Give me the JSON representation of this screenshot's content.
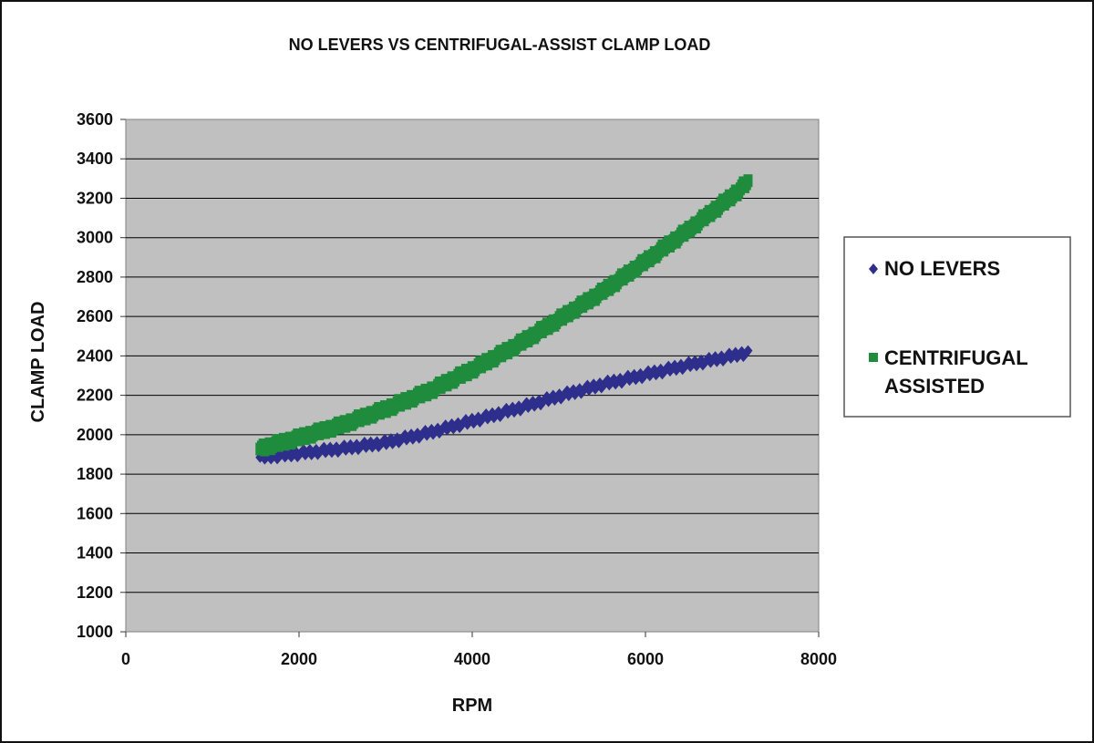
{
  "chart_data": {
    "type": "scatter",
    "title": "NO LEVERS VS CENTRIFUGAL-ASSIST CLAMP LOAD",
    "xlabel": "RPM",
    "ylabel": "CLAMP LOAD",
    "xlim": [
      0,
      8000
    ],
    "ylim": [
      1000,
      3600
    ],
    "x_ticks": [
      "0",
      "2000",
      "4000",
      "6000",
      "8000"
    ],
    "y_ticks": [
      "1000",
      "1200",
      "1400",
      "1600",
      "1800",
      "2000",
      "2200",
      "2400",
      "2600",
      "2800",
      "3000",
      "3200",
      "3400",
      "3600"
    ],
    "grid": "horizontal",
    "legend_position": "right",
    "plot_background": "#c0c0c0",
    "series": [
      {
        "name": "NO LEVERS",
        "marker": "diamond",
        "color": "#2e2e8c",
        "x": [
          1550,
          2000,
          2500,
          3000,
          3500,
          4000,
          4500,
          5000,
          5500,
          6000,
          6500,
          7000,
          7200
        ],
        "y": [
          1885,
          1905,
          1930,
          1960,
          2010,
          2070,
          2130,
          2195,
          2255,
          2305,
          2355,
          2400,
          2420
        ]
      },
      {
        "name": "CENTRIFUGAL ASSISTED",
        "legend_lines": [
          "CENTRIFUGAL",
          "ASSISTED"
        ],
        "marker": "square",
        "color": "#1e8c3c",
        "x": [
          1550,
          2000,
          2500,
          3000,
          3500,
          4000,
          4500,
          5000,
          5500,
          6000,
          6500,
          7000,
          7200
        ],
        "y": [
          1930,
          1985,
          2050,
          2130,
          2220,
          2330,
          2450,
          2585,
          2725,
          2880,
          3040,
          3210,
          3290
        ]
      }
    ]
  }
}
